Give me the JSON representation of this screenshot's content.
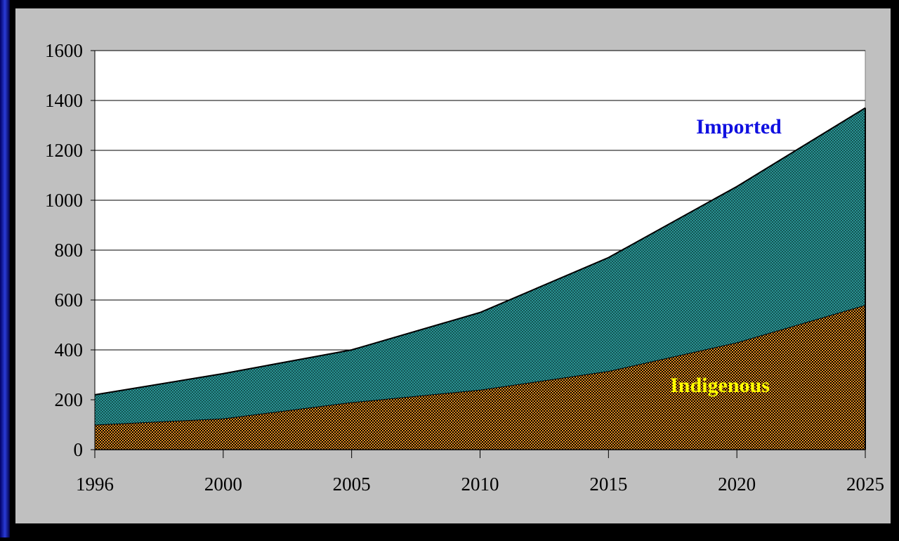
{
  "chart_data": {
    "type": "stacked_area",
    "categories": [
      "1996",
      "2000",
      "2005",
      "2010",
      "2015",
      "2020",
      "2025"
    ],
    "series": [
      {
        "name": "Indigenous",
        "color": "#e08a1e",
        "label_color": "#ffff00",
        "values": [
          100,
          125,
          190,
          240,
          315,
          430,
          580
        ]
      },
      {
        "name": "Imported",
        "color": "#2e9e9e",
        "label_color": "#1010e0",
        "values": [
          120,
          180,
          210,
          310,
          455,
          625,
          790
        ]
      }
    ],
    "ylim": [
      0,
      1600
    ],
    "yticks": [
      0,
      200,
      400,
      600,
      800,
      1000,
      1200,
      1400,
      1600
    ],
    "grid": true
  }
}
